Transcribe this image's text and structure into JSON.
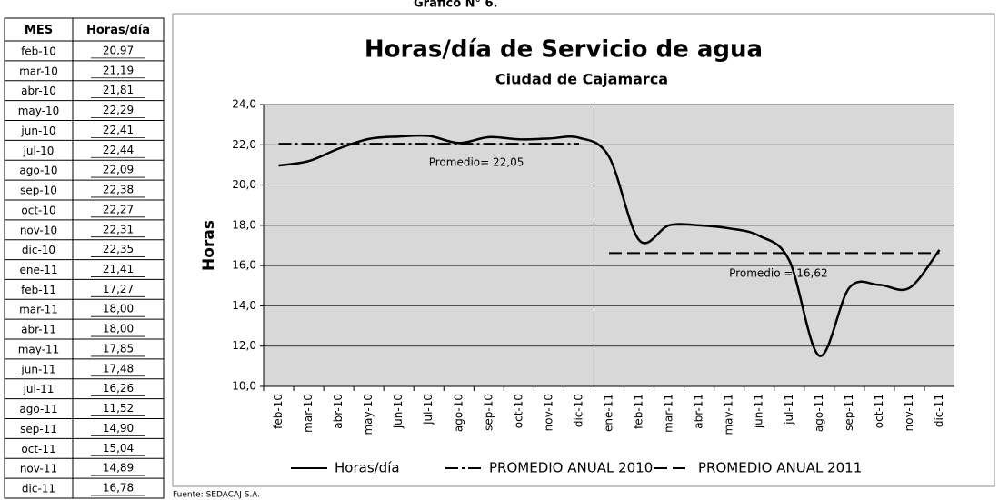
{
  "caption": "Gráfico N° 6.",
  "table": {
    "header": [
      "MES",
      "Horas/día"
    ],
    "rows": [
      [
        "feb-10",
        "20,97"
      ],
      [
        "mar-10",
        "21,19"
      ],
      [
        "abr-10",
        "21,81"
      ],
      [
        "may-10",
        "22,29"
      ],
      [
        "jun-10",
        "22,41"
      ],
      [
        "jul-10",
        "22,44"
      ],
      [
        "ago-10",
        "22,09"
      ],
      [
        "sep-10",
        "22,38"
      ],
      [
        "oct-10",
        "22,27"
      ],
      [
        "nov-10",
        "22,31"
      ],
      [
        "dic-10",
        "22,35"
      ],
      [
        "ene-11",
        "21,41"
      ],
      [
        "feb-11",
        "17,27"
      ],
      [
        "mar-11",
        "18,00"
      ],
      [
        "abr-11",
        "18,00"
      ],
      [
        "may-11",
        "17,85"
      ],
      [
        "jun-11",
        "17,48"
      ],
      [
        "jul-11",
        "16,26"
      ],
      [
        "ago-11",
        "11,52"
      ],
      [
        "sep-11",
        "14,90"
      ],
      [
        "oct-11",
        "15,04"
      ],
      [
        "nov-11",
        "14,89"
      ],
      [
        "dic-11",
        "16,78"
      ]
    ]
  },
  "chart_data": {
    "type": "line",
    "title": "Horas/día de Servicio de agua",
    "subtitle": "Ciudad de Cajamarca",
    "y_label": "Horas",
    "categories": [
      "feb-10",
      "mar-10",
      "abr-10",
      "may-10",
      "jun-10",
      "jul-10",
      "ago-10",
      "sep-10",
      "oct-10",
      "nov-10",
      "dic-10",
      "ene-11",
      "feb-11",
      "mar-11",
      "abr-11",
      "may-11",
      "jun-11",
      "jul-11",
      "ago-11",
      "sep-11",
      "oct-11",
      "nov-11",
      "dic-11"
    ],
    "series": [
      {
        "name": "Horas/día",
        "color": "#000000",
        "style": "solid",
        "smooth": true,
        "values": [
          20.97,
          21.19,
          21.81,
          22.29,
          22.41,
          22.44,
          22.09,
          22.38,
          22.27,
          22.31,
          22.35,
          21.41,
          17.27,
          18.0,
          18.0,
          17.85,
          17.48,
          16.26,
          11.52,
          14.9,
          15.04,
          14.89,
          16.78
        ]
      },
      {
        "name": "PROMEDIO ANUAL 2010",
        "color": "#000000",
        "style": "dashdot",
        "values": [
          22.05,
          22.05,
          22.05,
          22.05,
          22.05,
          22.05,
          22.05,
          22.05,
          22.05,
          22.05,
          22.05,
          null,
          null,
          null,
          null,
          null,
          null,
          null,
          null,
          null,
          null,
          null,
          null
        ]
      },
      {
        "name": "PROMEDIO ANUAL 2011",
        "color": "#000000",
        "style": "dashed",
        "values": [
          null,
          null,
          null,
          null,
          null,
          null,
          null,
          null,
          null,
          null,
          null,
          16.62,
          16.62,
          16.62,
          16.62,
          16.62,
          16.62,
          16.62,
          16.62,
          16.62,
          16.62,
          16.62,
          16.62
        ]
      }
    ],
    "annotations": [
      {
        "text": "Promedio= 22,05",
        "x": 5,
        "y": 21.1
      },
      {
        "text": "Promedio = 16,62",
        "x": 15,
        "y": 15.6
      }
    ],
    "ylim": [
      10,
      24
    ],
    "yticks": [
      {
        "value": 10,
        "label": "10,0"
      },
      {
        "value": 12,
        "label": "12,0"
      },
      {
        "value": 14,
        "label": "14,0"
      },
      {
        "value": 16,
        "label": "16,0"
      },
      {
        "value": 18,
        "label": "18,0"
      },
      {
        "value": 20,
        "label": "20,0"
      },
      {
        "value": 22,
        "label": "22,0"
      },
      {
        "value": 24,
        "label": "24,0"
      }
    ],
    "grid": true,
    "legend": "bottom"
  },
  "source": "Fuente: SEDACAJ S.A."
}
